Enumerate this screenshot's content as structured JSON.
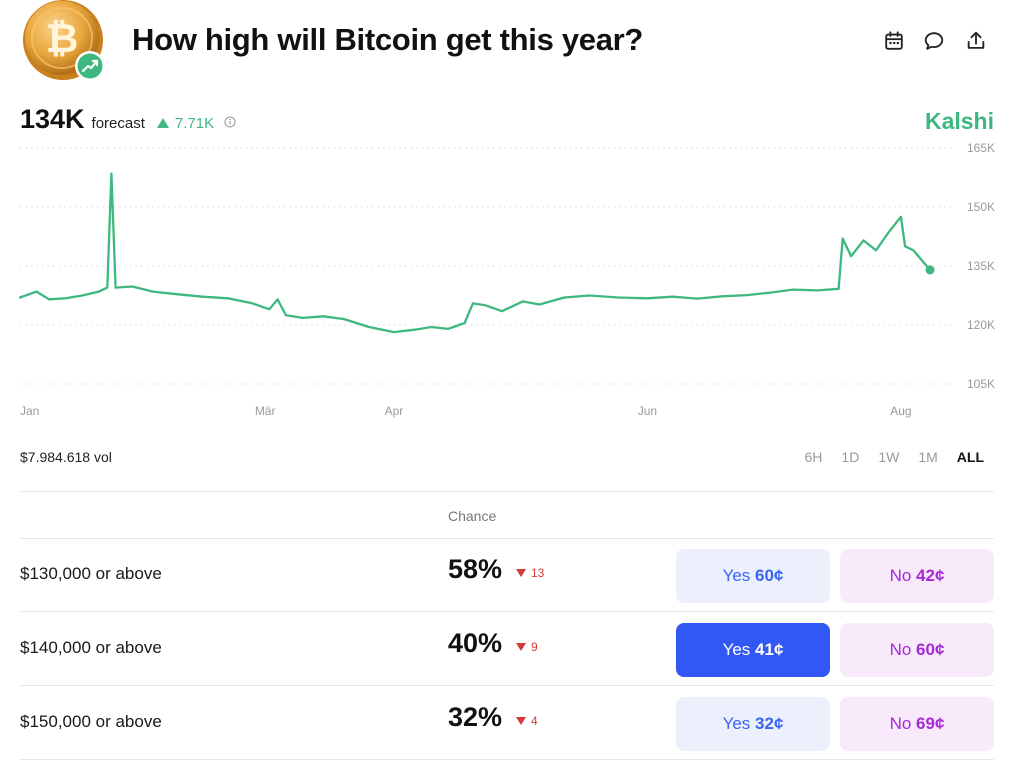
{
  "header": {
    "title": "How high will Bitcoin get this year?",
    "logo_icon": "bitcoin-coin-icon",
    "logo_badge_icon": "trending-up-icon",
    "actions": [
      "calendar-icon",
      "comment-icon",
      "share-icon"
    ]
  },
  "forecast": {
    "value": "134K",
    "label": "forecast",
    "change": "7.71K",
    "change_direction": "up",
    "change_color": "#3fb87f"
  },
  "brand": "Kalshi",
  "chart_data": {
    "type": "line",
    "color": "#3fb87f",
    "y_ticks": [
      "165K",
      "150K",
      "135K",
      "120K",
      "105K"
    ],
    "x_ticks": [
      "Jan",
      "Mär",
      "Apr",
      "Jun",
      "Aug"
    ],
    "ylim": [
      105000,
      165000
    ],
    "grid": "horizontal dotted",
    "series": [
      {
        "points": [
          [
            "Jan 1",
            127000
          ],
          [
            "Jan 5",
            128500
          ],
          [
            "Jan 8",
            126500
          ],
          [
            "Jan 12",
            126800
          ],
          [
            "Jan 16",
            127500
          ],
          [
            "Jan 20",
            128500
          ],
          [
            "Jan 22",
            129500
          ],
          [
            "Jan 23",
            158500
          ],
          [
            "Jan 24",
            129500
          ],
          [
            "Jan 28",
            129800
          ],
          [
            "Feb 2",
            128500
          ],
          [
            "Feb 8",
            127800
          ],
          [
            "Feb 14",
            127200
          ],
          [
            "Feb 20",
            126800
          ],
          [
            "Feb 26",
            125500
          ],
          [
            "Mar 2",
            124000
          ],
          [
            "Mar 4",
            126500
          ],
          [
            "Mar 6",
            122500
          ],
          [
            "Mar 10",
            121800
          ],
          [
            "Mar 15",
            122200
          ],
          [
            "Mar 20",
            121500
          ],
          [
            "Mar 26",
            119500
          ],
          [
            "Apr 1",
            118200
          ],
          [
            "Apr 6",
            118800
          ],
          [
            "Apr 10",
            119500
          ],
          [
            "Apr 14",
            119000
          ],
          [
            "Apr 18",
            120500
          ],
          [
            "Apr 20",
            125500
          ],
          [
            "Apr 23",
            125000
          ],
          [
            "Apr 27",
            123500
          ],
          [
            "May 2",
            126000
          ],
          [
            "May 6",
            125200
          ],
          [
            "May 12",
            127000
          ],
          [
            "May 18",
            127500
          ],
          [
            "May 25",
            127000
          ],
          [
            "Jun 1",
            126800
          ],
          [
            "Jun 7",
            127200
          ],
          [
            "Jun 13",
            126700
          ],
          [
            "Jun 19",
            127300
          ],
          [
            "Jun 25",
            127600
          ],
          [
            "Jul 1",
            128300
          ],
          [
            "Jul 6",
            129000
          ],
          [
            "Jul 12",
            128800
          ],
          [
            "Jul 17",
            129200
          ],
          [
            "Jul 18",
            142000
          ],
          [
            "Jul 20",
            137500
          ],
          [
            "Jul 23",
            141500
          ],
          [
            "Jul 26",
            139000
          ],
          [
            "Jul 29",
            143500
          ],
          [
            "Aug 1",
            147500
          ],
          [
            "Aug 2",
            140000
          ],
          [
            "Aug 4",
            139000
          ],
          [
            "Aug 6",
            136500
          ],
          [
            "Aug 8",
            134000
          ]
        ]
      }
    ]
  },
  "footer": {
    "volume": "$7.984.618 vol",
    "ranges": [
      {
        "label": "6H",
        "active": false
      },
      {
        "label": "1D",
        "active": false
      },
      {
        "label": "1W",
        "active": false
      },
      {
        "label": "1M",
        "active": false
      },
      {
        "label": "ALL",
        "active": true
      }
    ]
  },
  "markets": {
    "chance_header": "Chance",
    "rows": [
      {
        "label": "$130,000 or above",
        "chance": "58%",
        "delta": "13",
        "yes_label": "Yes",
        "yes_price": "60¢",
        "no_label": "No",
        "no_price": "42¢"
      },
      {
        "label": "$140,000 or above",
        "chance": "40%",
        "delta": "9",
        "yes_label": "Yes",
        "yes_price": "41¢",
        "no_label": "No",
        "no_price": "60¢",
        "selected": "yes"
      },
      {
        "label": "$150,000 or above",
        "chance": "32%",
        "delta": "4",
        "yes_label": "Yes",
        "yes_price": "32¢",
        "no_label": "No",
        "no_price": "69¢"
      }
    ]
  }
}
